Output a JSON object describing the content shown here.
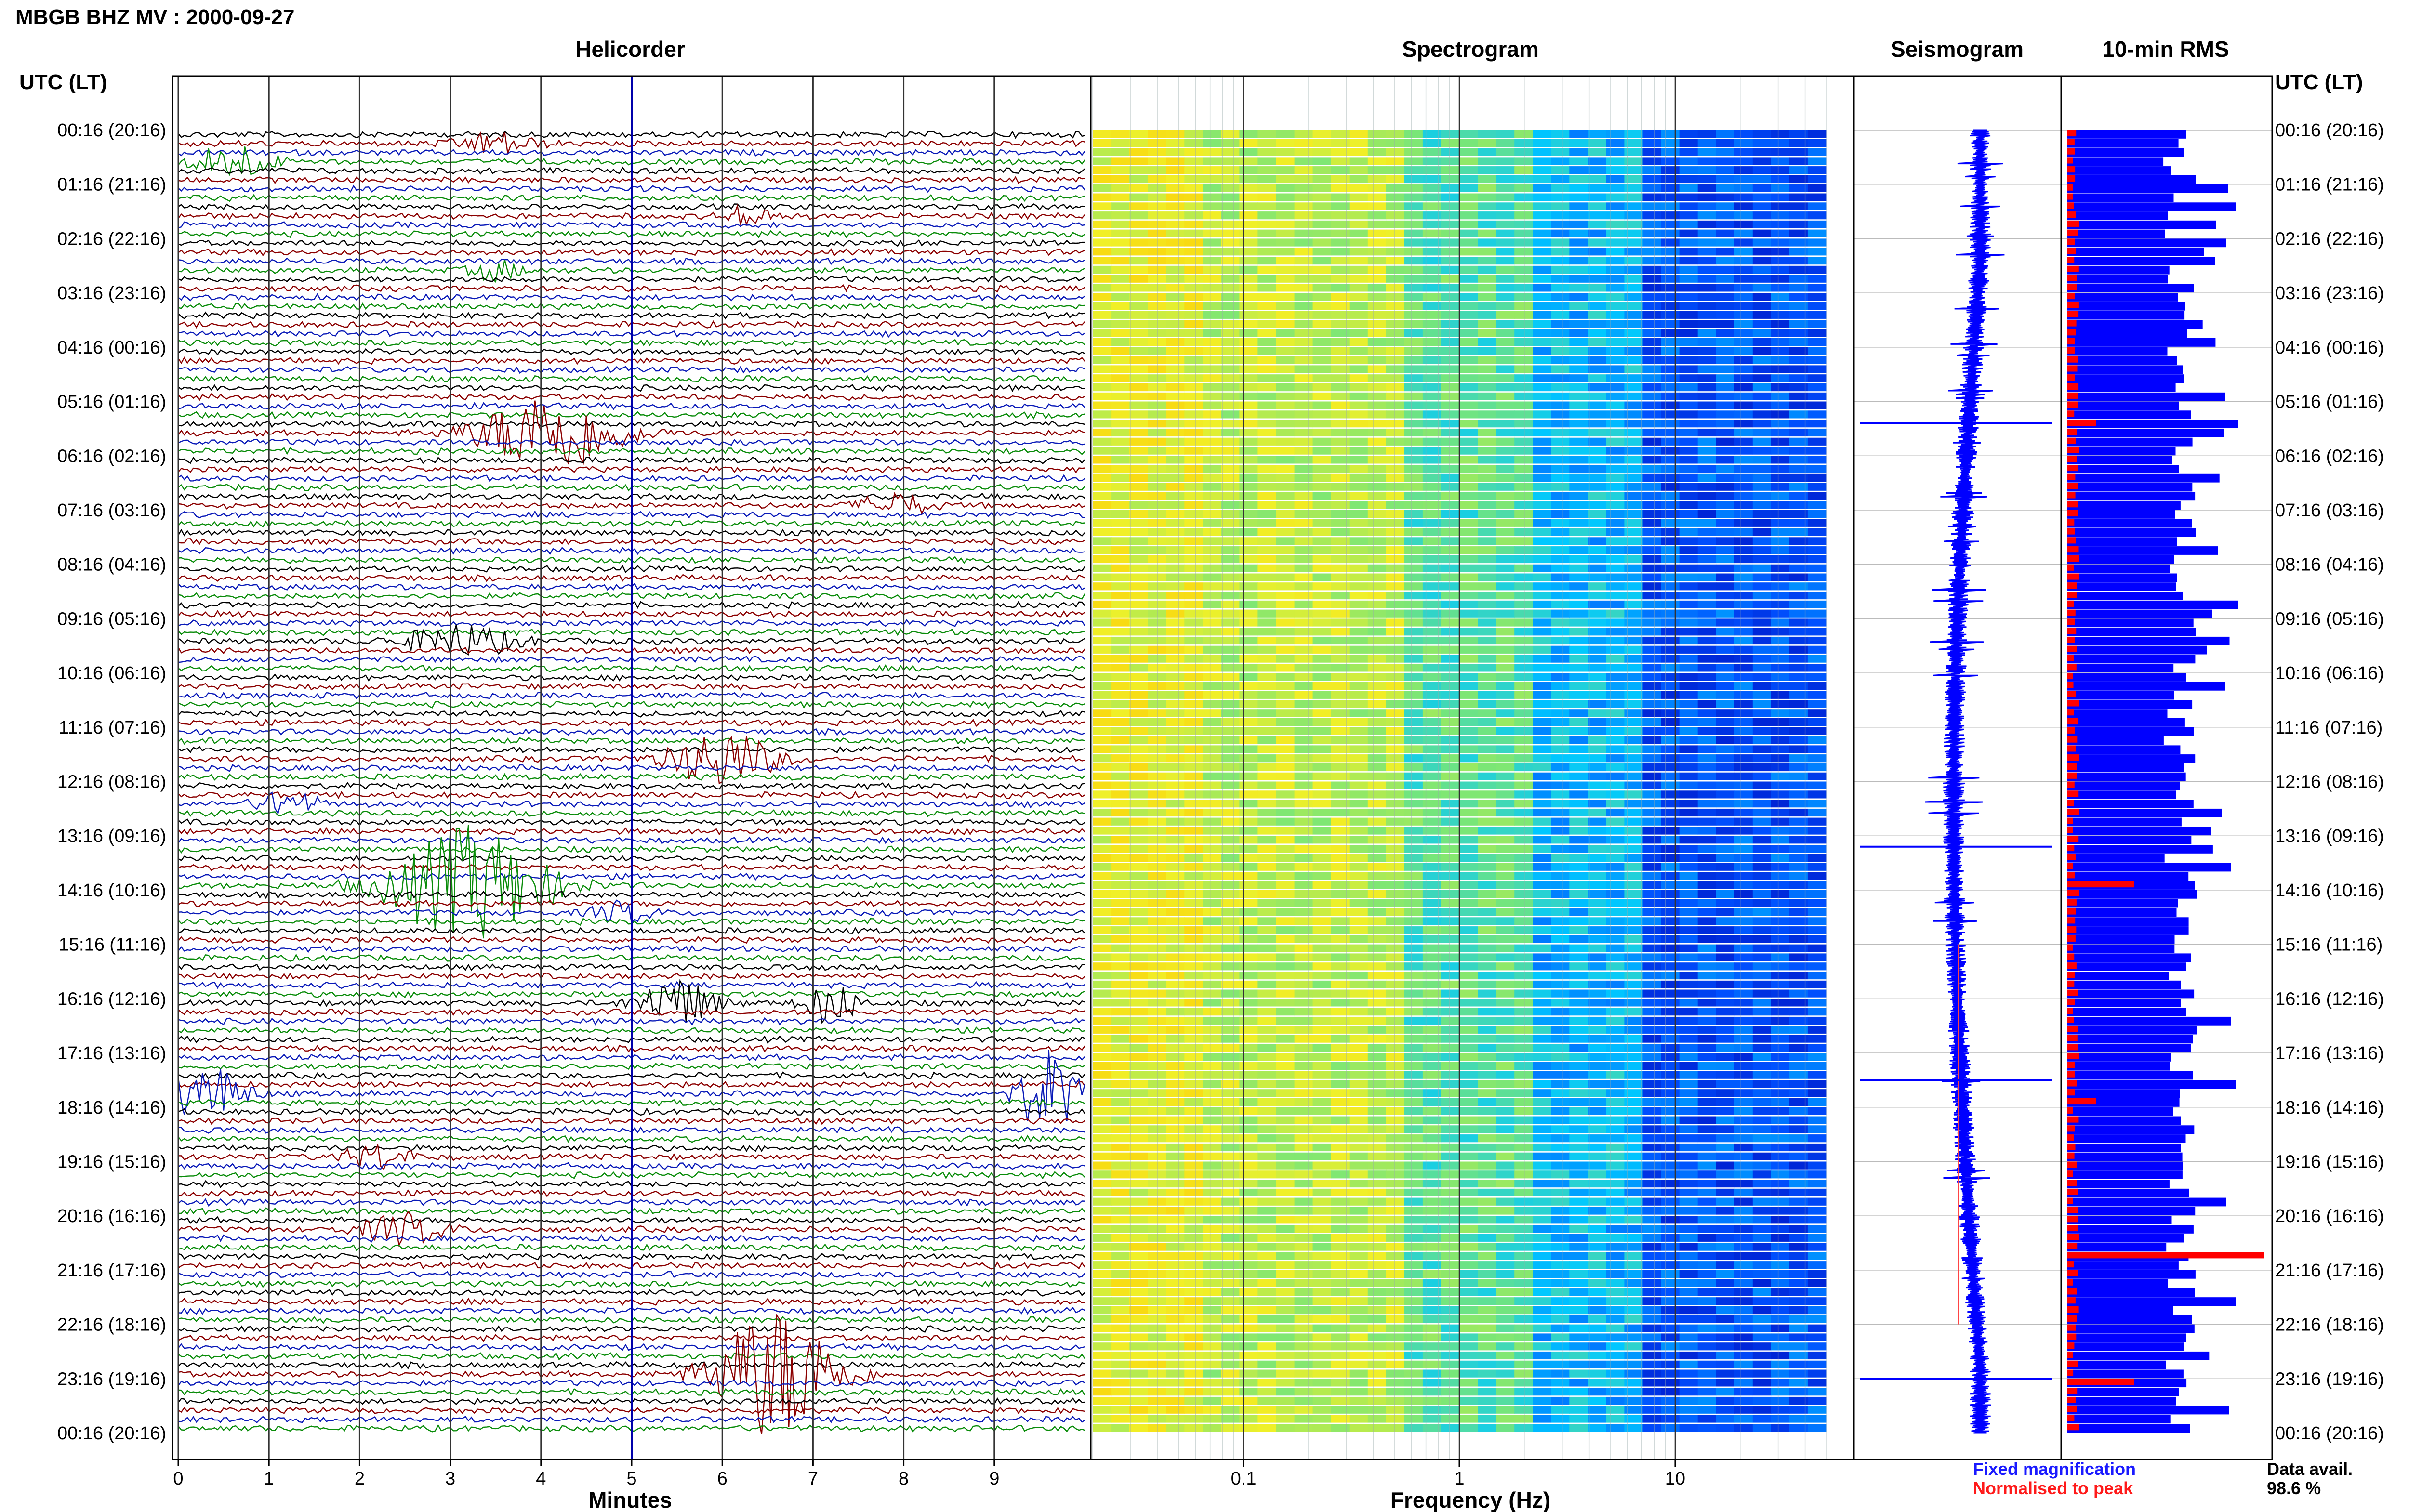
{
  "title": "MBGB BHZ MV : 2000-09-27",
  "panels": {
    "helicorder": "Helicorder",
    "spectrogram": "Spectrogram",
    "seismogram": "Seismogram",
    "rms": "10-min RMS"
  },
  "time_axis_label": "UTC (LT)",
  "time_labels": [
    "00:16 (20:16)",
    "01:16 (21:16)",
    "02:16 (22:16)",
    "03:16 (23:16)",
    "04:16 (00:16)",
    "05:16 (01:16)",
    "06:16 (02:16)",
    "07:16 (03:16)",
    "08:16 (04:16)",
    "09:16 (05:16)",
    "10:16 (06:16)",
    "11:16 (07:16)",
    "12:16 (08:16)",
    "13:16 (09:16)",
    "14:16 (10:16)",
    "15:16 (11:16)",
    "16:16 (12:16)",
    "17:16 (13:16)",
    "18:16 (14:16)",
    "19:16 (15:16)",
    "20:16 (16:16)",
    "21:16 (17:16)",
    "22:16 (18:16)",
    "23:16 (19:16)",
    "00:16 (20:16)"
  ],
  "xlabels": {
    "helicorder": "Minutes",
    "spectrogram": "Frequency (Hz)"
  },
  "minute_ticks": [
    "0",
    "1",
    "2",
    "3",
    "4",
    "5",
    "6",
    "7",
    "8",
    "9"
  ],
  "freq_ticks": [
    "0.1",
    "1",
    "10"
  ],
  "legend": {
    "fixed": "Fixed magnification",
    "normalised": "Normalised to peak",
    "fixed_color": "#1a1aff",
    "normalised_color": "#ff1a1a"
  },
  "data_avail": {
    "label": "Data avail.",
    "value": "98.6 %"
  },
  "colors": {
    "trace_cycle": [
      "#000000",
      "#8b0000",
      "#0a1ab8",
      "#0a8c0a"
    ],
    "rms_fixed": "#0000ff",
    "rms_normalised": "#ff0000"
  },
  "chart_data": {
    "type": "heatmap",
    "title": "MBGB BHZ MV : 2000-09-27",
    "panels": [
      "Helicorder",
      "Spectrogram",
      "Seismogram",
      "10-min RMS"
    ],
    "helicorder": {
      "xlabel": "Minutes",
      "x_range": [
        0,
        10
      ],
      "row_minutes": 10,
      "rows": 144,
      "events": [
        {
          "time": "01:46",
          "minute": 0.3,
          "color": "dark-red"
        },
        {
          "time": "05:26",
          "minute": 4.0,
          "color": "green"
        },
        {
          "time": "09:26",
          "minute": 3.0,
          "color": "green"
        },
        {
          "time": "11:36",
          "minute": 6.0,
          "color": "green"
        },
        {
          "time": "13:36",
          "minute": 3.3,
          "color": "green"
        },
        {
          "time": "15:56",
          "minute": 5.5,
          "color": "dark-red"
        },
        {
          "time": "17:46",
          "minute": 0.3,
          "color": "dark-red"
        },
        {
          "time": "17:46",
          "minute": 9.7,
          "color": "black"
        },
        {
          "time": "23:06",
          "minute": 6.5,
          "color": "dark-red"
        }
      ]
    },
    "spectrogram": {
      "xlabel": "Frequency (Hz)",
      "x_scale": "log",
      "x_range": [
        0.02,
        50
      ],
      "high_energy_band_hz": [
        0.02,
        0.5
      ],
      "low_energy_above_hz": 2
    },
    "rms": {
      "title": "10-min RMS",
      "series": [
        {
          "name": "Fixed magnification"
        },
        {
          "name": "Normalised to peak"
        }
      ]
    },
    "data_availability_percent": 98.6
  }
}
